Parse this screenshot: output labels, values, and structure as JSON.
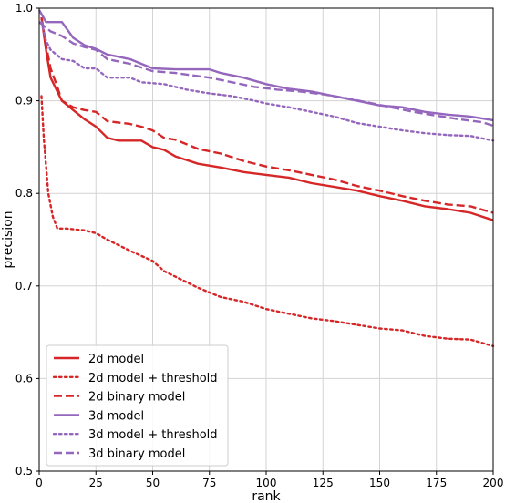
{
  "chart_data": {
    "type": "line",
    "xlabel": "rank",
    "ylabel": "precision",
    "xlim": [
      0,
      200
    ],
    "ylim": [
      0.5,
      1.0
    ],
    "x_ticks": [
      0,
      25,
      50,
      75,
      100,
      125,
      150,
      175,
      200
    ],
    "y_ticks": [
      0.5,
      0.6,
      0.7,
      0.8,
      0.9,
      1.0
    ],
    "x_tick_labels": [
      "0",
      "25",
      "50",
      "75",
      "100",
      "125",
      "150",
      "175",
      "200"
    ],
    "y_tick_labels": [
      "0.5",
      "0.6",
      "0.7",
      "0.8",
      "0.9",
      "1.0"
    ],
    "grid": true,
    "legend_position": "lower-left",
    "series": [
      {
        "name": "2d model",
        "color": "#d62728",
        "dash": "solid",
        "points": [
          [
            1,
            0.99
          ],
          [
            3,
            0.955
          ],
          [
            5,
            0.925
          ],
          [
            8,
            0.91
          ],
          [
            10,
            0.9
          ],
          [
            15,
            0.89
          ],
          [
            20,
            0.88
          ],
          [
            25,
            0.872
          ],
          [
            30,
            0.86
          ],
          [
            35,
            0.857
          ],
          [
            45,
            0.857
          ],
          [
            50,
            0.85
          ],
          [
            55,
            0.847
          ],
          [
            60,
            0.84
          ],
          [
            70,
            0.832
          ],
          [
            80,
            0.828
          ],
          [
            90,
            0.823
          ],
          [
            100,
            0.82
          ],
          [
            110,
            0.817
          ],
          [
            120,
            0.811
          ],
          [
            130,
            0.807
          ],
          [
            140,
            0.803
          ],
          [
            150,
            0.797
          ],
          [
            160,
            0.792
          ],
          [
            170,
            0.786
          ],
          [
            180,
            0.783
          ],
          [
            190,
            0.779
          ],
          [
            200,
            0.771
          ]
        ]
      },
      {
        "name": "2d model + threshold",
        "color": "#d62728",
        "dash": "dotted",
        "points": [
          [
            1,
            0.905
          ],
          [
            2,
            0.86
          ],
          [
            4,
            0.8
          ],
          [
            6,
            0.775
          ],
          [
            8,
            0.762
          ],
          [
            12,
            0.762
          ],
          [
            20,
            0.76
          ],
          [
            25,
            0.757
          ],
          [
            30,
            0.75
          ],
          [
            40,
            0.738
          ],
          [
            50,
            0.727
          ],
          [
            55,
            0.716
          ],
          [
            60,
            0.71
          ],
          [
            70,
            0.698
          ],
          [
            80,
            0.688
          ],
          [
            90,
            0.683
          ],
          [
            100,
            0.675
          ],
          [
            110,
            0.67
          ],
          [
            120,
            0.665
          ],
          [
            130,
            0.662
          ],
          [
            140,
            0.658
          ],
          [
            150,
            0.654
          ],
          [
            160,
            0.652
          ],
          [
            170,
            0.646
          ],
          [
            180,
            0.643
          ],
          [
            190,
            0.642
          ],
          [
            200,
            0.635
          ]
        ]
      },
      {
        "name": "2d binary model",
        "color": "#d62728",
        "dash": "dashed",
        "points": [
          [
            1,
            0.99
          ],
          [
            3,
            0.96
          ],
          [
            5,
            0.935
          ],
          [
            8,
            0.915
          ],
          [
            10,
            0.9
          ],
          [
            15,
            0.893
          ],
          [
            20,
            0.89
          ],
          [
            25,
            0.888
          ],
          [
            30,
            0.878
          ],
          [
            40,
            0.875
          ],
          [
            45,
            0.872
          ],
          [
            50,
            0.868
          ],
          [
            55,
            0.86
          ],
          [
            60,
            0.858
          ],
          [
            70,
            0.848
          ],
          [
            80,
            0.843
          ],
          [
            90,
            0.835
          ],
          [
            100,
            0.829
          ],
          [
            110,
            0.825
          ],
          [
            120,
            0.82
          ],
          [
            130,
            0.815
          ],
          [
            140,
            0.808
          ],
          [
            150,
            0.803
          ],
          [
            160,
            0.797
          ],
          [
            170,
            0.792
          ],
          [
            180,
            0.788
          ],
          [
            190,
            0.786
          ],
          [
            200,
            0.779
          ]
        ]
      },
      {
        "name": "3d model",
        "color": "#9467bd",
        "dash": "solid",
        "points": [
          [
            0,
            0.998
          ],
          [
            3,
            0.985
          ],
          [
            10,
            0.985
          ],
          [
            15,
            0.968
          ],
          [
            20,
            0.96
          ],
          [
            25,
            0.956
          ],
          [
            30,
            0.95
          ],
          [
            40,
            0.945
          ],
          [
            45,
            0.94
          ],
          [
            50,
            0.935
          ],
          [
            60,
            0.934
          ],
          [
            75,
            0.934
          ],
          [
            80,
            0.93
          ],
          [
            90,
            0.925
          ],
          [
            100,
            0.918
          ],
          [
            110,
            0.913
          ],
          [
            120,
            0.91
          ],
          [
            130,
            0.905
          ],
          [
            140,
            0.9
          ],
          [
            150,
            0.895
          ],
          [
            160,
            0.893
          ],
          [
            170,
            0.888
          ],
          [
            180,
            0.885
          ],
          [
            190,
            0.883
          ],
          [
            200,
            0.879
          ]
        ]
      },
      {
        "name": "3d model + threshold",
        "color": "#9467bd",
        "dash": "dotted",
        "points": [
          [
            1,
            0.985
          ],
          [
            3,
            0.965
          ],
          [
            5,
            0.955
          ],
          [
            10,
            0.945
          ],
          [
            15,
            0.943
          ],
          [
            20,
            0.935
          ],
          [
            25,
            0.935
          ],
          [
            30,
            0.925
          ],
          [
            40,
            0.925
          ],
          [
            45,
            0.92
          ],
          [
            55,
            0.918
          ],
          [
            65,
            0.912
          ],
          [
            75,
            0.908
          ],
          [
            85,
            0.905
          ],
          [
            95,
            0.9
          ],
          [
            100,
            0.897
          ],
          [
            110,
            0.893
          ],
          [
            120,
            0.888
          ],
          [
            130,
            0.883
          ],
          [
            140,
            0.876
          ],
          [
            150,
            0.872
          ],
          [
            160,
            0.868
          ],
          [
            170,
            0.865
          ],
          [
            180,
            0.863
          ],
          [
            190,
            0.862
          ],
          [
            200,
            0.857
          ]
        ]
      },
      {
        "name": "3d binary model",
        "color": "#9467bd",
        "dash": "dashed",
        "points": [
          [
            0,
            0.985
          ],
          [
            5,
            0.975
          ],
          [
            10,
            0.97
          ],
          [
            15,
            0.962
          ],
          [
            20,
            0.958
          ],
          [
            25,
            0.955
          ],
          [
            30,
            0.945
          ],
          [
            40,
            0.94
          ],
          [
            50,
            0.932
          ],
          [
            60,
            0.93
          ],
          [
            75,
            0.925
          ],
          [
            85,
            0.92
          ],
          [
            95,
            0.915
          ],
          [
            105,
            0.912
          ],
          [
            115,
            0.91
          ],
          [
            125,
            0.907
          ],
          [
            135,
            0.903
          ],
          [
            145,
            0.898
          ],
          [
            155,
            0.893
          ],
          [
            165,
            0.888
          ],
          [
            175,
            0.884
          ],
          [
            185,
            0.88
          ],
          [
            195,
            0.877
          ],
          [
            200,
            0.873
          ]
        ]
      }
    ]
  }
}
